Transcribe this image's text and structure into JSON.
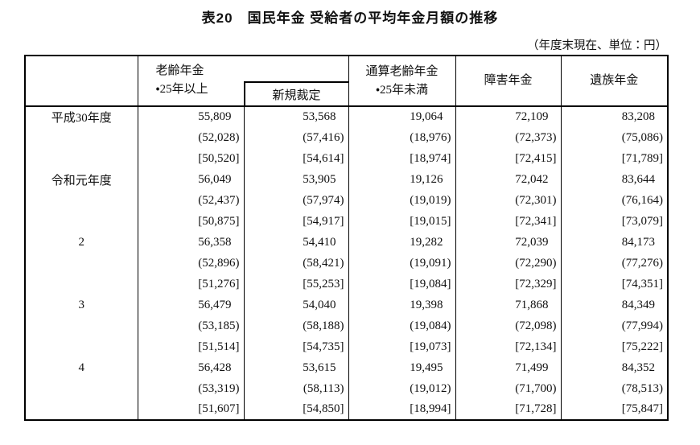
{
  "title": "表20　国民年金 受給者の平均年金月額の推移",
  "note": "（年度末現在、単位：円）",
  "table": {
    "headers": {
      "old_age_line1": "老齢年金",
      "old_age_line2": "・25年以上",
      "new_ruling": "新規裁定",
      "total_line1": "通算老齢年金",
      "total_line2": "・25年未満",
      "disability": "障害年金",
      "survivor": "遺族年金"
    },
    "groups": [
      {
        "label": "平成30年度",
        "rows": [
          [
            "55,809",
            "53,568",
            "19,064",
            "72,109",
            "83,208"
          ],
          [
            "(52,028)",
            "(57,416)",
            "(18,976)",
            "(72,373)",
            "(75,086)"
          ],
          [
            "[50,520]",
            "[54,614]",
            "[18,974]",
            "[72,415]",
            "[71,789]"
          ]
        ]
      },
      {
        "label": "令和元年度",
        "rows": [
          [
            "56,049",
            "53,905",
            "19,126",
            "72,042",
            "83,644"
          ],
          [
            "(52,437)",
            "(57,974)",
            "(19,019)",
            "(72,301)",
            "(76,164)"
          ],
          [
            "[50,875]",
            "[54,917]",
            "[19,015]",
            "[72,341]",
            "[73,079]"
          ]
        ]
      },
      {
        "label": "2",
        "rows": [
          [
            "56,358",
            "54,410",
            "19,282",
            "72,039",
            "84,173"
          ],
          [
            "(52,896)",
            "(58,421)",
            "(19,091)",
            "(72,290)",
            "(77,276)"
          ],
          [
            "[51,276]",
            "[55,253]",
            "[19,084]",
            "[72,329]",
            "[74,351]"
          ]
        ]
      },
      {
        "label": "3",
        "rows": [
          [
            "56,479",
            "54,040",
            "19,398",
            "71,868",
            "84,349"
          ],
          [
            "(53,185)",
            "(58,188)",
            "(19,084)",
            "(72,098)",
            "(77,994)"
          ],
          [
            "[51,514]",
            "[54,735]",
            "[19,073]",
            "[72,134]",
            "[75,222]"
          ]
        ]
      },
      {
        "label": "4",
        "rows": [
          [
            "56,428",
            "53,615",
            "19,495",
            "71,499",
            "84,352"
          ],
          [
            "(53,319)",
            "(58,113)",
            "(19,012)",
            "(71,700)",
            "(78,513)"
          ],
          [
            "[51,607]",
            "[54,850]",
            "[18,994]",
            "[71,728]",
            "[75,847]"
          ]
        ]
      }
    ]
  }
}
